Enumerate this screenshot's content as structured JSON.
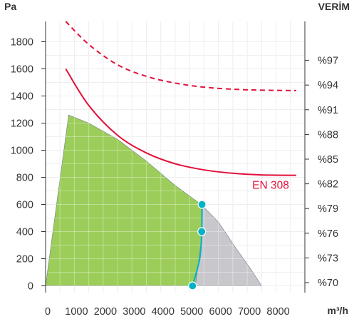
{
  "chart_data": {
    "type": "area",
    "title": "",
    "y_unit": "Pa",
    "y2_unit": "VERİM",
    "x_unit": "m³/h",
    "x_ticks": [
      0,
      1000,
      2000,
      3000,
      4000,
      5000,
      6000,
      7000,
      8000
    ],
    "y_ticks": [
      0,
      200,
      400,
      600,
      800,
      1000,
      1200,
      1400,
      1600,
      1800
    ],
    "y2_ticks": [
      "%70",
      "%73",
      "%76",
      "%79",
      "%82",
      "%85",
      "%88",
      "%91",
      "%94",
      "%97"
    ],
    "xlim": [
      0,
      9000
    ],
    "ylim": [
      -50,
      1950
    ],
    "grid": true,
    "series": [
      {
        "kind": "area",
        "color": "#9ccd5a",
        "values": [
          [
            0,
            0
          ],
          [
            800,
            1260
          ],
          [
            1500,
            1200
          ],
          [
            2500,
            1080
          ],
          [
            3500,
            920
          ],
          [
            4500,
            740
          ],
          [
            5400,
            600
          ],
          [
            5450,
            400
          ],
          [
            5200,
            0
          ]
        ]
      },
      {
        "kind": "area",
        "color": "#c8c8cc",
        "values": [
          [
            5400,
            600
          ],
          [
            6000,
            470
          ],
          [
            6600,
            280
          ],
          [
            7100,
            130
          ],
          [
            7500,
            0
          ],
          [
            5200,
            0
          ],
          [
            5450,
            400
          ]
        ]
      },
      {
        "kind": "line",
        "color": "#e2103a",
        "style": "solid",
        "annotation": "EN 308",
        "values": [
          [
            700,
            1600
          ],
          [
            1500,
            1330
          ],
          [
            2500,
            1110
          ],
          [
            3500,
            980
          ],
          [
            4500,
            900
          ],
          [
            5500,
            855
          ],
          [
            6500,
            830
          ],
          [
            7500,
            818
          ],
          [
            8700,
            815
          ]
        ]
      },
      {
        "kind": "line",
        "color": "#e2103a",
        "style": "dashed",
        "values": [
          [
            700,
            1950
          ],
          [
            1500,
            1780
          ],
          [
            2500,
            1630
          ],
          [
            3500,
            1545
          ],
          [
            4500,
            1495
          ],
          [
            5500,
            1465
          ],
          [
            6500,
            1450
          ],
          [
            7500,
            1443
          ],
          [
            8700,
            1440
          ]
        ]
      },
      {
        "kind": "line",
        "color": "#00b3c7",
        "style": "solid",
        "values": [
          [
            5100,
            0
          ],
          [
            5350,
            200
          ],
          [
            5420,
            400
          ],
          [
            5430,
            600
          ]
        ]
      },
      {
        "kind": "scatter",
        "color": "#00b3c7",
        "values": [
          [
            5100,
            0
          ],
          [
            5420,
            400
          ],
          [
            5430,
            600
          ]
        ]
      }
    ]
  }
}
